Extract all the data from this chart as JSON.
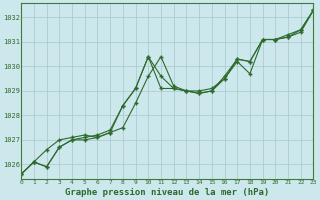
{
  "title": "Graphe pression niveau de la mer (hPa)",
  "background_color": "#cde8ec",
  "grid_color": "#a8c8cc",
  "line_color": "#2d6a2d",
  "xlim": [
    0,
    23
  ],
  "ylim": [
    1025.4,
    1032.6
  ],
  "yticks": [
    1026,
    1027,
    1028,
    1029,
    1030,
    1031,
    1032
  ],
  "xtick_labels": [
    "0",
    "1",
    "2",
    "3",
    "4",
    "5",
    "6",
    "7",
    "8",
    "9",
    "10",
    "11",
    "12",
    "13",
    "14",
    "15",
    "16",
    "17",
    "18",
    "19",
    "20",
    "21",
    "22",
    "23"
  ],
  "series1_x": [
    0,
    1,
    2,
    3,
    4,
    5,
    6,
    7,
    8,
    9,
    10,
    11,
    12,
    13,
    14,
    15,
    16,
    17,
    18,
    19,
    20,
    21,
    22,
    23
  ],
  "series1_y": [
    1025.6,
    1026.1,
    1025.9,
    1026.7,
    1027.0,
    1027.0,
    1027.1,
    1027.3,
    1028.4,
    1029.1,
    1030.4,
    1029.1,
    1029.1,
    1029.0,
    1028.9,
    1029.0,
    1029.5,
    1030.2,
    1029.7,
    1031.1,
    1031.1,
    1031.2,
    1031.5,
    1032.3
  ],
  "series2_x": [
    0,
    1,
    2,
    3,
    4,
    5,
    6,
    7,
    8,
    9,
    10,
    11,
    12,
    13,
    14,
    15,
    16,
    17,
    18,
    19,
    20,
    21,
    22,
    23
  ],
  "series2_y": [
    1025.6,
    1026.1,
    1026.6,
    1027.0,
    1027.1,
    1027.2,
    1027.1,
    1027.3,
    1027.5,
    1028.5,
    1029.6,
    1030.4,
    1029.2,
    1029.0,
    1029.0,
    1029.1,
    1029.5,
    1030.3,
    1030.2,
    1031.1,
    1031.1,
    1031.2,
    1031.4,
    1032.3
  ],
  "series3_x": [
    0,
    1,
    2,
    3,
    4,
    5,
    6,
    7,
    8,
    9,
    10,
    11,
    12,
    13,
    14,
    15,
    16,
    17,
    18,
    19,
    20,
    21,
    22,
    23
  ],
  "series3_y": [
    1025.6,
    1026.1,
    1025.9,
    1026.7,
    1027.0,
    1027.1,
    1027.2,
    1027.4,
    1028.4,
    1029.1,
    1030.4,
    1029.6,
    1029.1,
    1029.0,
    1028.9,
    1029.0,
    1029.6,
    1030.3,
    1030.2,
    1031.1,
    1031.1,
    1031.3,
    1031.5,
    1032.3
  ]
}
